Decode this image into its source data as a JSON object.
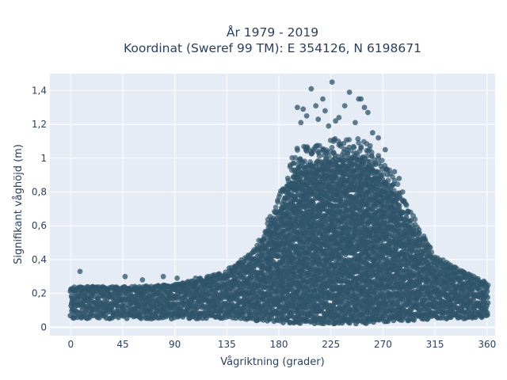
{
  "chart_data": {
    "type": "scatter",
    "title": "År 1979 - 2019",
    "subtitle": "Koordinat (Sweref 99 TM): E 354126, N 6198671",
    "xlabel": "Vågriktning (grader)",
    "ylabel": "Signifikant våghöjd (m)",
    "xlim": [
      -18,
      367
    ],
    "ylim": [
      -0.05,
      1.5
    ],
    "x_ticks": [
      0,
      45,
      90,
      135,
      180,
      225,
      270,
      315,
      360
    ],
    "x_tick_labels": [
      "0",
      "45",
      "90",
      "135",
      "180",
      "225",
      "270",
      "315",
      "360"
    ],
    "y_ticks": [
      0,
      0.2,
      0.4,
      0.6,
      0.8,
      1.0,
      1.2,
      1.4
    ],
    "y_tick_labels": [
      "0",
      "0,2",
      "0,4",
      "0,6",
      "0,8",
      "1",
      "1,2",
      "1,4"
    ],
    "grid": true,
    "marker_color": "#2f5469",
    "plot_bg": "#e5ecf6",
    "series": [
      {
        "envelope_description": "dense band of observations",
        "envelope": [
          {
            "x": 0,
            "ymin": 0.05,
            "ymax": 0.22
          },
          {
            "x": 45,
            "ymin": 0.05,
            "ymax": 0.22
          },
          {
            "x": 90,
            "ymin": 0.05,
            "ymax": 0.23
          },
          {
            "x": 135,
            "ymin": 0.05,
            "ymax": 0.3
          },
          {
            "x": 160,
            "ymin": 0.04,
            "ymax": 0.42
          },
          {
            "x": 180,
            "ymin": 0.03,
            "ymax": 0.7
          },
          {
            "x": 195,
            "ymin": 0.02,
            "ymax": 0.95
          },
          {
            "x": 225,
            "ymin": 0.02,
            "ymax": 1.0
          },
          {
            "x": 255,
            "ymin": 0.02,
            "ymax": 1.0
          },
          {
            "x": 275,
            "ymin": 0.03,
            "ymax": 0.85
          },
          {
            "x": 295,
            "ymin": 0.04,
            "ymax": 0.6
          },
          {
            "x": 315,
            "ymin": 0.05,
            "ymax": 0.38
          },
          {
            "x": 340,
            "ymin": 0.05,
            "ymax": 0.3
          },
          {
            "x": 360,
            "ymin": 0.05,
            "ymax": 0.24
          }
        ],
        "outliers": [
          {
            "x": 8,
            "y": 0.33
          },
          {
            "x": 47,
            "y": 0.3
          },
          {
            "x": 62,
            "y": 0.28
          },
          {
            "x": 80,
            "y": 0.3
          },
          {
            "x": 92,
            "y": 0.29
          },
          {
            "x": 108,
            "y": 0.29
          },
          {
            "x": 137,
            "y": 0.35
          },
          {
            "x": 142,
            "y": 0.35
          },
          {
            "x": 196,
            "y": 1.3
          },
          {
            "x": 199,
            "y": 1.21
          },
          {
            "x": 201,
            "y": 1.29
          },
          {
            "x": 204,
            "y": 1.25
          },
          {
            "x": 208,
            "y": 1.41
          },
          {
            "x": 212,
            "y": 1.31
          },
          {
            "x": 214,
            "y": 1.23
          },
          {
            "x": 218,
            "y": 1.35
          },
          {
            "x": 220,
            "y": 1.28
          },
          {
            "x": 223,
            "y": 1.19
          },
          {
            "x": 226,
            "y": 1.45
          },
          {
            "x": 229,
            "y": 1.22
          },
          {
            "x": 232,
            "y": 1.24
          },
          {
            "x": 237,
            "y": 1.31
          },
          {
            "x": 241,
            "y": 1.39
          },
          {
            "x": 246,
            "y": 1.21
          },
          {
            "x": 249,
            "y": 1.35
          },
          {
            "x": 251,
            "y": 1.35
          },
          {
            "x": 254,
            "y": 1.3
          },
          {
            "x": 257,
            "y": 1.27
          },
          {
            "x": 261,
            "y": 1.15
          },
          {
            "x": 266,
            "y": 1.12
          },
          {
            "x": 272,
            "y": 1.05
          },
          {
            "x": 280,
            "y": 0.92
          },
          {
            "x": 284,
            "y": 0.88
          },
          {
            "x": 287,
            "y": 0.8
          }
        ]
      }
    ]
  }
}
